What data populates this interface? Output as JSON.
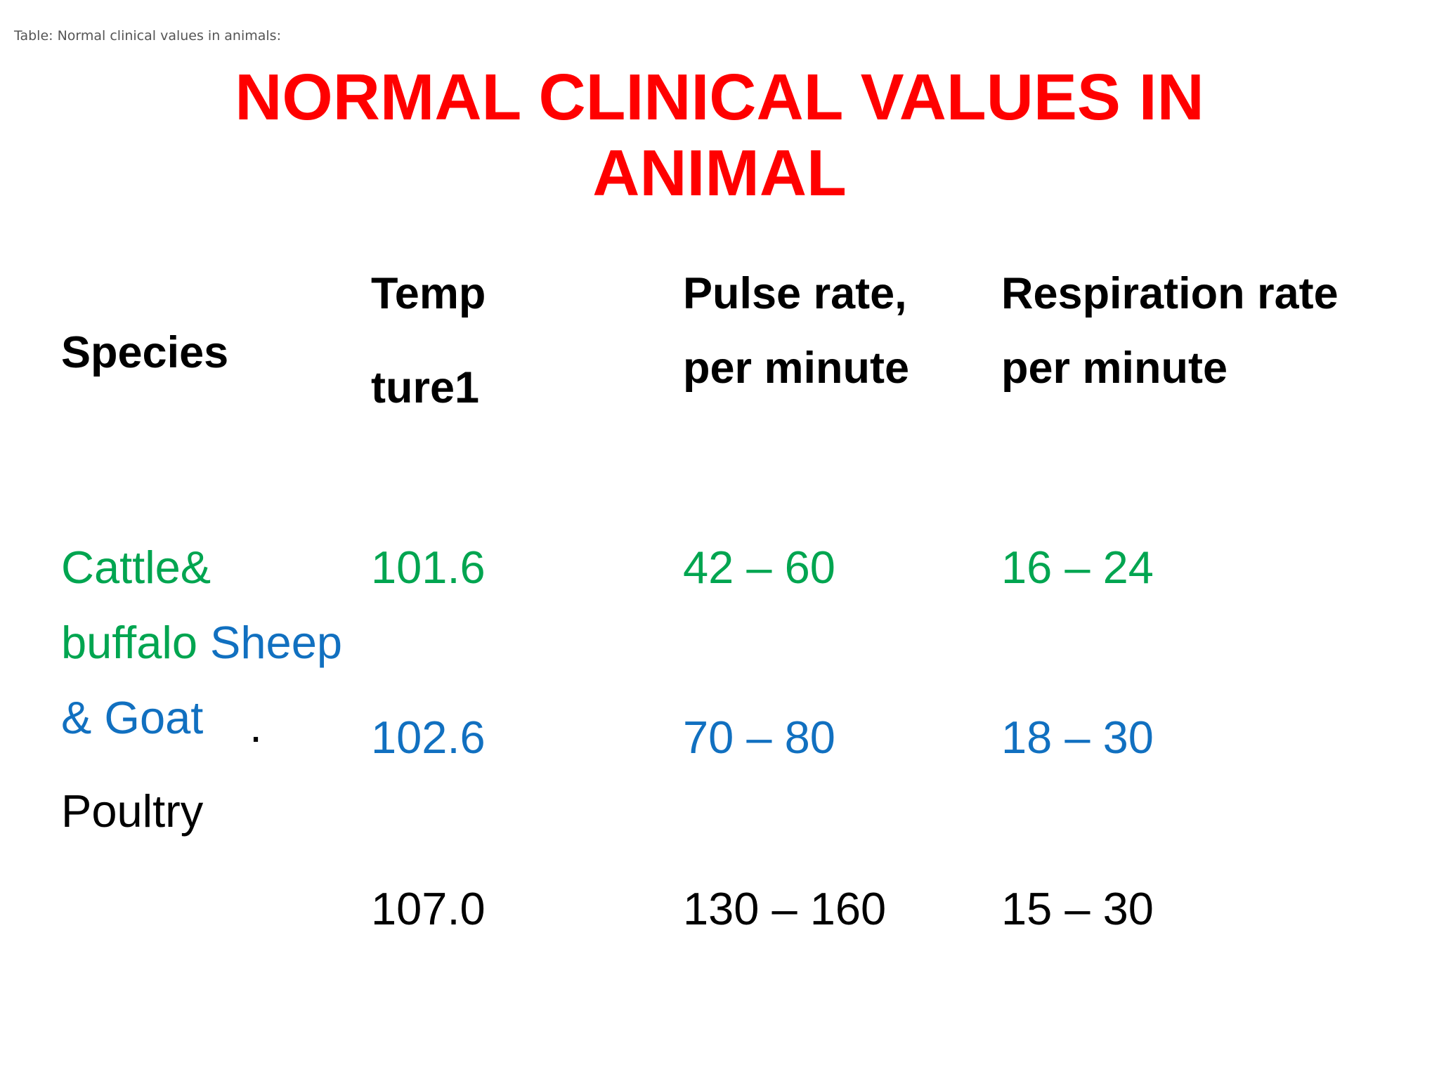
{
  "caption": "Table: Normal clinical values in animals:",
  "title": {
    "line1": "NORMAL CLINICAL VALUES IN",
    "line2": "ANIMAL"
  },
  "headers": {
    "species": "Species",
    "temp_line1": "Temp",
    "temp_line2": "ture1",
    "pulse_line1": "Pulse rate,",
    "pulse_line2": "per minute",
    "resp_line1": "Respiration rate",
    "resp_line2": "per minute"
  },
  "species_lines": {
    "line1": "Cattle&",
    "line2_a": "buffalo",
    "line2_b": "Sheep",
    "line3": "& Goat",
    "dot": ".",
    "line4": "Poultry"
  },
  "rows": [
    {
      "temp": "101.6",
      "pulse": "42 – 60",
      "resp": "16 – 24"
    },
    {
      "temp": "102.6",
      "pulse": "70 – 80",
      "resp": "18 – 30"
    },
    {
      "temp": "107.0",
      "pulse": "130 – 160",
      "resp": "15 – 30"
    }
  ],
  "colors": {
    "title": "#ff0000",
    "cattle": "#00a550",
    "sheep": "#1170c0",
    "poultry": "#000000"
  }
}
